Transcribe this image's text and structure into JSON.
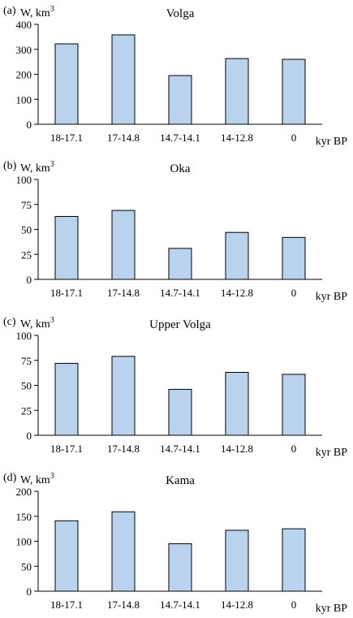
{
  "chart_data": [
    {
      "type": "bar",
      "panel_label": "(a)",
      "title": "Volga",
      "ylabel": "W, km",
      "ylabel_sup": "3",
      "xlabel": "kyr BP",
      "categories": [
        "18-17.1",
        "17-14.8",
        "14.7-14.1",
        "14-12.8",
        "0"
      ],
      "values": [
        322,
        358,
        195,
        263,
        260
      ],
      "ylim": [
        0,
        400
      ],
      "yticks": [
        0,
        100,
        200,
        300,
        400
      ],
      "bar_color": "#b9d3ee"
    },
    {
      "type": "bar",
      "panel_label": "(b)",
      "title": "Oka",
      "ylabel": "W, km",
      "ylabel_sup": "3",
      "xlabel": "kyr BP",
      "categories": [
        "18-17.1",
        "17-14.8",
        "14.7-14.1",
        "14-12.8",
        "0"
      ],
      "values": [
        63,
        69,
        31,
        47,
        42
      ],
      "ylim": [
        0,
        100
      ],
      "yticks": [
        0,
        25,
        50,
        75,
        100
      ],
      "bar_color": "#b9d3ee"
    },
    {
      "type": "bar",
      "panel_label": "(c)",
      "title": "Upper Volga",
      "ylabel": "W, km",
      "ylabel_sup": "3",
      "xlabel": "kyr BP",
      "categories": [
        "18-17.1",
        "17-14.8",
        "14.7-14.1",
        "14-12.8",
        "0"
      ],
      "values": [
        72,
        79,
        46,
        63,
        61
      ],
      "ylim": [
        0,
        100
      ],
      "yticks": [
        0,
        25,
        50,
        75,
        100
      ],
      "bar_color": "#b9d3ee"
    },
    {
      "type": "bar",
      "panel_label": "(d)",
      "title": "Kama",
      "ylabel": "W, km",
      "ylabel_sup": "3",
      "xlabel": "kyr BP",
      "categories": [
        "18-17.1",
        "17-14.8",
        "14.7-14.1",
        "14-12.8",
        "0"
      ],
      "values": [
        141,
        159,
        95,
        122,
        125
      ],
      "ylim": [
        0,
        200
      ],
      "yticks": [
        0,
        50,
        100,
        150,
        200
      ],
      "bar_color": "#b9d3ee"
    }
  ]
}
